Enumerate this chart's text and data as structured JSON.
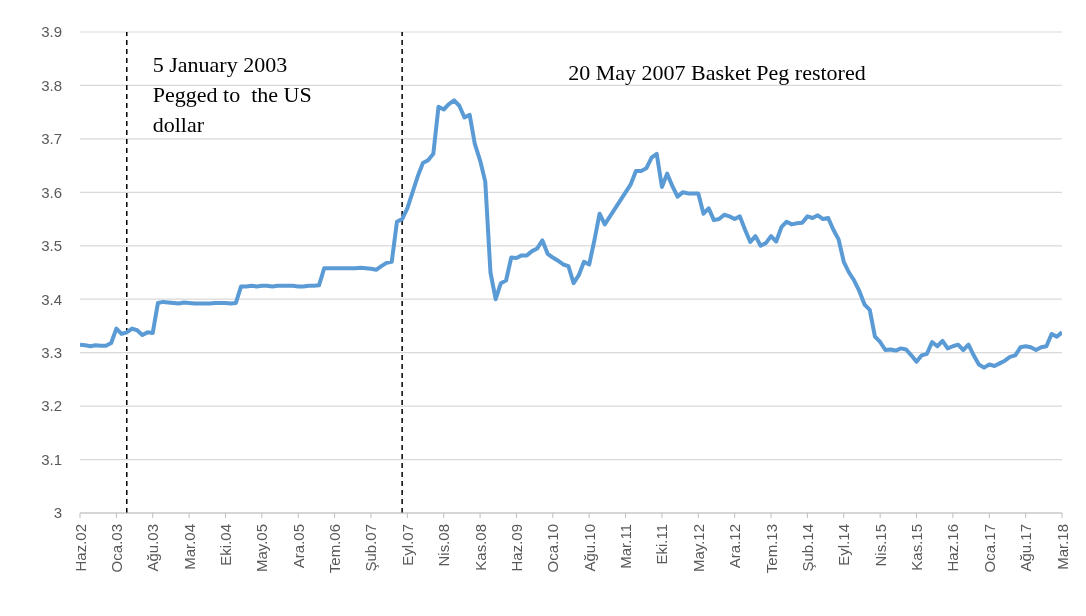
{
  "chart_data": {
    "type": "line",
    "x": [
      "2002-06",
      "2002-07",
      "2002-08",
      "2002-09",
      "2002-10",
      "2002-11",
      "2002-12",
      "2003-01",
      "2003-02",
      "2003-03",
      "2003-04",
      "2003-05",
      "2003-06",
      "2003-07",
      "2003-08",
      "2003-09",
      "2003-10",
      "2003-11",
      "2003-12",
      "2004-01",
      "2004-02",
      "2004-03",
      "2004-04",
      "2004-05",
      "2004-06",
      "2004-07",
      "2004-08",
      "2004-09",
      "2004-10",
      "2004-11",
      "2004-12",
      "2005-01",
      "2005-02",
      "2005-03",
      "2005-04",
      "2005-05",
      "2005-06",
      "2005-07",
      "2005-08",
      "2005-09",
      "2005-10",
      "2005-11",
      "2005-12",
      "2006-01",
      "2006-02",
      "2006-03",
      "2006-04",
      "2006-05",
      "2006-06",
      "2006-07",
      "2006-08",
      "2006-09",
      "2006-10",
      "2006-11",
      "2006-12",
      "2007-01",
      "2007-02",
      "2007-03",
      "2007-04",
      "2007-05",
      "2007-06",
      "2007-07",
      "2007-08",
      "2007-09",
      "2007-10",
      "2007-11",
      "2007-12",
      "2008-01",
      "2008-02",
      "2008-03",
      "2008-04",
      "2008-05",
      "2008-06",
      "2008-07",
      "2008-08",
      "2008-09",
      "2008-10",
      "2008-11",
      "2008-12",
      "2009-01",
      "2009-02",
      "2009-03",
      "2009-04",
      "2009-05",
      "2009-06",
      "2009-07",
      "2009-08",
      "2009-09",
      "2009-10",
      "2009-11",
      "2009-12",
      "2010-01",
      "2010-02",
      "2010-03",
      "2010-04",
      "2010-05",
      "2010-06",
      "2010-07",
      "2010-08",
      "2010-09",
      "2010-10",
      "2010-11",
      "2010-12",
      "2011-01",
      "2011-02",
      "2011-03",
      "2011-04",
      "2011-05",
      "2011-06",
      "2011-07",
      "2011-08",
      "2011-09",
      "2011-10",
      "2011-11",
      "2011-12",
      "2012-01",
      "2012-02",
      "2012-03",
      "2012-04",
      "2012-05",
      "2012-06",
      "2012-07",
      "2012-08",
      "2012-09",
      "2012-10",
      "2012-11",
      "2012-12",
      "2013-01",
      "2013-02",
      "2013-03",
      "2013-04",
      "2013-05",
      "2013-06",
      "2013-07",
      "2013-08",
      "2013-09",
      "2013-10",
      "2013-11",
      "2013-12",
      "2014-01",
      "2014-02",
      "2014-03",
      "2014-04",
      "2014-05",
      "2014-06",
      "2014-07",
      "2014-08",
      "2014-09",
      "2014-10",
      "2014-11",
      "2014-12",
      "2015-01",
      "2015-02",
      "2015-03",
      "2015-04",
      "2015-05",
      "2015-06",
      "2015-07",
      "2015-08",
      "2015-09",
      "2015-10",
      "2015-11",
      "2015-12",
      "2016-01",
      "2016-02",
      "2016-03",
      "2016-04",
      "2016-05",
      "2016-06",
      "2016-07",
      "2016-08",
      "2016-09",
      "2016-10",
      "2016-11",
      "2016-12",
      "2017-01",
      "2017-02",
      "2017-03",
      "2017-04",
      "2017-05",
      "2017-06",
      "2017-07",
      "2017-08",
      "2017-09",
      "2017-10",
      "2017-11",
      "2017-12",
      "2018-01",
      "2018-02",
      "2018-03"
    ],
    "series": [
      {
        "color": "#5b9bd5",
        "values": [
          3.315,
          3.314,
          3.312,
          3.314,
          3.313,
          3.313,
          3.318,
          3.345,
          3.335,
          3.338,
          3.345,
          3.342,
          3.333,
          3.338,
          3.337,
          3.393,
          3.395,
          3.394,
          3.393,
          3.392,
          3.394,
          3.393,
          3.392,
          3.392,
          3.392,
          3.392,
          3.393,
          3.393,
          3.393,
          3.392,
          3.393,
          3.424,
          3.424,
          3.425,
          3.424,
          3.425,
          3.425,
          3.424,
          3.425,
          3.425,
          3.425,
          3.425,
          3.424,
          3.424,
          3.425,
          3.425,
          3.426,
          3.458,
          3.458,
          3.458,
          3.458,
          3.458,
          3.458,
          3.458,
          3.459,
          3.458,
          3.457,
          3.455,
          3.462,
          3.468,
          3.47,
          3.545,
          3.55,
          3.57,
          3.6,
          3.63,
          3.655,
          3.66,
          3.672,
          3.76,
          3.755,
          3.765,
          3.772,
          3.762,
          3.74,
          3.745,
          3.69,
          3.66,
          3.62,
          3.45,
          3.4,
          3.43,
          3.435,
          3.478,
          3.477,
          3.482,
          3.482,
          3.49,
          3.495,
          3.51,
          3.485,
          3.478,
          3.472,
          3.465,
          3.462,
          3.43,
          3.445,
          3.47,
          3.465,
          3.51,
          3.56,
          3.54,
          3.555,
          3.57,
          3.585,
          3.6,
          3.615,
          3.64,
          3.64,
          3.645,
          3.665,
          3.672,
          3.61,
          3.635,
          3.612,
          3.592,
          3.6,
          3.598,
          3.598,
          3.598,
          3.56,
          3.57,
          3.548,
          3.55,
          3.558,
          3.555,
          3.55,
          3.555,
          3.53,
          3.507,
          3.518,
          3.5,
          3.505,
          3.518,
          3.508,
          3.535,
          3.545,
          3.54,
          3.542,
          3.543,
          3.555,
          3.552,
          3.557,
          3.55,
          3.552,
          3.53,
          3.512,
          3.47,
          3.45,
          3.435,
          3.415,
          3.39,
          3.38,
          3.33,
          3.32,
          3.305,
          3.306,
          3.304,
          3.308,
          3.306,
          3.295,
          3.283,
          3.295,
          3.298,
          3.32,
          3.312,
          3.322,
          3.308,
          3.312,
          3.315,
          3.305,
          3.315,
          3.295,
          3.278,
          3.272,
          3.278,
          3.275,
          3.28,
          3.285,
          3.292,
          3.295,
          3.31,
          3.312,
          3.31,
          3.305,
          3.31,
          3.312,
          3.335,
          3.33,
          3.338
        ]
      }
    ],
    "xlim": [
      "2002-06",
      "2018-03"
    ],
    "xticks": [
      {
        "value": "2002-06",
        "label": "Haz.02"
      },
      {
        "value": "2003-01",
        "label": "Oca.03"
      },
      {
        "value": "2003-08",
        "label": "Ağu.03"
      },
      {
        "value": "2004-03",
        "label": "Mar.04"
      },
      {
        "value": "2004-10",
        "label": "Eki.04"
      },
      {
        "value": "2005-05",
        "label": "May.05"
      },
      {
        "value": "2005-12",
        "label": "Ara.05"
      },
      {
        "value": "2006-07",
        "label": "Tem.06"
      },
      {
        "value": "2007-02",
        "label": "Şub.07"
      },
      {
        "value": "2007-09",
        "label": "Eyl.07"
      },
      {
        "value": "2008-04",
        "label": "Nis.08"
      },
      {
        "value": "2008-11",
        "label": "Kas.08"
      },
      {
        "value": "2009-06",
        "label": "Haz.09"
      },
      {
        "value": "2010-01",
        "label": "Oca.10"
      },
      {
        "value": "2010-08",
        "label": "Ağu.10"
      },
      {
        "value": "2011-03",
        "label": "Mar.11"
      },
      {
        "value": "2011-10",
        "label": "Eki.11"
      },
      {
        "value": "2012-05",
        "label": "May.12"
      },
      {
        "value": "2012-12",
        "label": "Ara.12"
      },
      {
        "value": "2013-07",
        "label": "Tem.13"
      },
      {
        "value": "2014-02",
        "label": "Şub.14"
      },
      {
        "value": "2014-09",
        "label": "Eyl.14"
      },
      {
        "value": "2015-04",
        "label": "Nis.15"
      },
      {
        "value": "2015-11",
        "label": "Kas.15"
      },
      {
        "value": "2016-06",
        "label": "Haz.16"
      },
      {
        "value": "2017-01",
        "label": "Oca.17"
      },
      {
        "value": "2017-08",
        "label": "Ağu.17"
      },
      {
        "value": "2018-03",
        "label": "Mar.18"
      }
    ],
    "ylim": [
      3,
      3.9
    ],
    "yticks": [
      3,
      3.1,
      3.2,
      3.3,
      3.4,
      3.5,
      3.6,
      3.7,
      3.8,
      3.9
    ],
    "grid": "y",
    "legend": false,
    "marker": "none",
    "line_style": "solid",
    "ref_lines": [
      {
        "axis": "x",
        "value": "2003-03",
        "color": "#000000",
        "line_style": "dashed"
      },
      {
        "axis": "x",
        "value": "2007-08",
        "color": "#000000",
        "line_style": "dashed"
      }
    ],
    "annotations": [
      "5 January 2003\nPegged to  the US\ndollar",
      "20 May 2007 Basket Peg restored"
    ]
  }
}
